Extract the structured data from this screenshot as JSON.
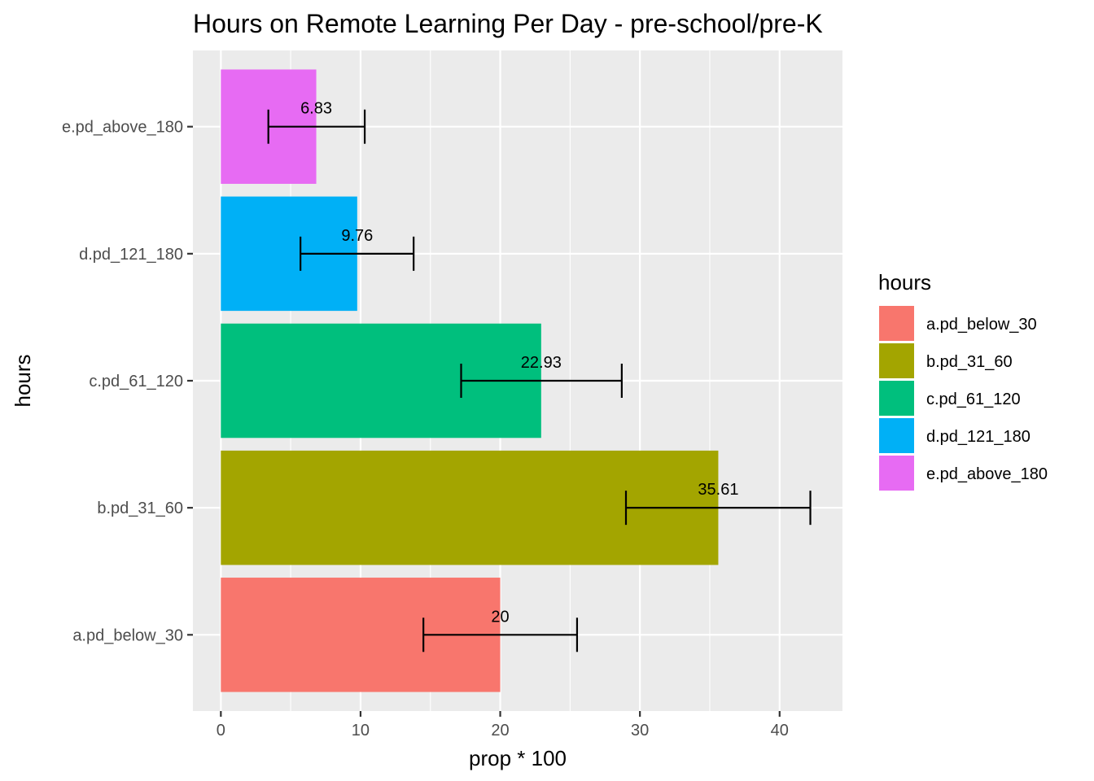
{
  "chart_data": {
    "type": "bar",
    "orientation": "horizontal",
    "title": "Hours on Remote Learning Per Day  - pre-school/pre-K",
    "xlabel": "prop * 100",
    "ylabel": "hours",
    "xlim": [
      -2,
      44.5
    ],
    "x_ticks": [
      0,
      10,
      20,
      30,
      40
    ],
    "grid": true,
    "categories": [
      "a.pd_below_30",
      "b.pd_31_60",
      "c.pd_61_120",
      "d.pd_121_180",
      "e.pd_above_180"
    ],
    "values": [
      20,
      35.61,
      22.93,
      9.76,
      6.83
    ],
    "labels": [
      "20",
      "35.61",
      "22.93",
      "9.76",
      "6.83"
    ],
    "error_low": [
      14.5,
      29.0,
      17.2,
      5.7,
      3.4
    ],
    "error_high": [
      25.5,
      42.2,
      28.7,
      13.8,
      10.3
    ],
    "colors": [
      "#F8766D",
      "#A3A500",
      "#00BF7D",
      "#00B0F6",
      "#E76BF3"
    ],
    "legend": {
      "title": "hours",
      "position": "right",
      "entries": [
        "a.pd_below_30",
        "b.pd_31_60",
        "c.pd_61_120",
        "d.pd_121_180",
        "e.pd_above_180"
      ]
    }
  }
}
